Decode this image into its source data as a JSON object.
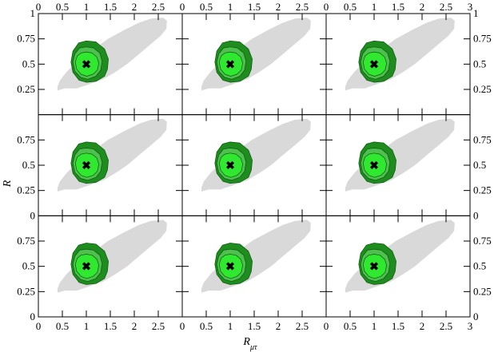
{
  "chart_data": {
    "type": "contour-grid",
    "layout": {
      "rows": 3,
      "cols": 3
    },
    "xlabel": "R",
    "xlabel_subscript": "μτ",
    "ylabel": "R",
    "xlim": [
      0,
      3
    ],
    "ylim": [
      0,
      1
    ],
    "x_ticks": [
      0,
      0.5,
      1,
      1.5,
      2,
      2.5,
      3
    ],
    "x_tick_labels_first_col": [
      "0",
      "0.5",
      "1",
      "1.5",
      "2",
      "2.5"
    ],
    "x_tick_labels_mid_col": [
      "0",
      "0.5",
      "1",
      "1.5",
      "2",
      "2.5"
    ],
    "x_tick_labels_last_col": [
      "0",
      "0.5",
      "1",
      "1.5",
      "2",
      "2.5",
      "3"
    ],
    "y_ticks": [
      0,
      0.25,
      0.5,
      0.75,
      1
    ],
    "y_tick_labels_top_row": [
      "0.25",
      "0.5",
      "0.75",
      "1"
    ],
    "y_tick_labels_other_rows": [
      "0",
      "0.25",
      "0.5",
      "0.75"
    ],
    "grid": false,
    "best_fit_marker": {
      "x": 1.0,
      "y": 0.5,
      "symbol": "✖"
    },
    "regions": [
      {
        "level": "outer",
        "color": "#d9d9d9",
        "outline": [
          [
            0.4,
            0.24
          ],
          [
            0.55,
            0.26
          ],
          [
            0.8,
            0.26
          ],
          [
            1.05,
            0.3
          ],
          [
            1.35,
            0.35
          ],
          [
            1.6,
            0.42
          ],
          [
            1.85,
            0.5
          ],
          [
            2.1,
            0.6
          ],
          [
            2.35,
            0.7
          ],
          [
            2.55,
            0.78
          ],
          [
            2.67,
            0.85
          ],
          [
            2.68,
            0.93
          ],
          [
            2.6,
            0.96
          ],
          [
            2.35,
            0.95
          ],
          [
            2.1,
            0.91
          ],
          [
            1.8,
            0.84
          ],
          [
            1.45,
            0.75
          ],
          [
            1.1,
            0.63
          ],
          [
            0.8,
            0.52
          ],
          [
            0.6,
            0.43
          ],
          [
            0.45,
            0.34
          ],
          [
            0.4,
            0.28
          ]
        ]
      },
      {
        "level": "3-sigma",
        "color": "#1e8c1e",
        "outline": [
          [
            1.0,
            0.73
          ],
          [
            1.2,
            0.72
          ],
          [
            1.38,
            0.65
          ],
          [
            1.46,
            0.55
          ],
          [
            1.44,
            0.45
          ],
          [
            1.38,
            0.38
          ],
          [
            1.2,
            0.33
          ],
          [
            1.0,
            0.32
          ],
          [
            0.85,
            0.34
          ],
          [
            0.72,
            0.42
          ],
          [
            0.68,
            0.52
          ],
          [
            0.72,
            0.63
          ],
          [
            0.84,
            0.71
          ]
        ]
      },
      {
        "level": "2-sigma",
        "color": "#4fbf4f",
        "outline": [
          [
            1.0,
            0.67
          ],
          [
            1.15,
            0.66
          ],
          [
            1.28,
            0.61
          ],
          [
            1.33,
            0.53
          ],
          [
            1.3,
            0.44
          ],
          [
            1.2,
            0.38
          ],
          [
            1.03,
            0.35
          ],
          [
            0.88,
            0.37
          ],
          [
            0.76,
            0.43
          ],
          [
            0.72,
            0.52
          ],
          [
            0.76,
            0.6
          ],
          [
            0.86,
            0.66
          ]
        ]
      },
      {
        "level": "1-sigma",
        "color": "#2fe82f",
        "outline": [
          [
            1.0,
            0.62
          ],
          [
            1.12,
            0.61
          ],
          [
            1.22,
            0.57
          ],
          [
            1.26,
            0.51
          ],
          [
            1.23,
            0.44
          ],
          [
            1.14,
            0.4
          ],
          [
            1.01,
            0.38
          ],
          [
            0.89,
            0.4
          ],
          [
            0.8,
            0.45
          ],
          [
            0.77,
            0.52
          ],
          [
            0.81,
            0.58
          ],
          [
            0.89,
            0.61
          ]
        ]
      }
    ]
  }
}
